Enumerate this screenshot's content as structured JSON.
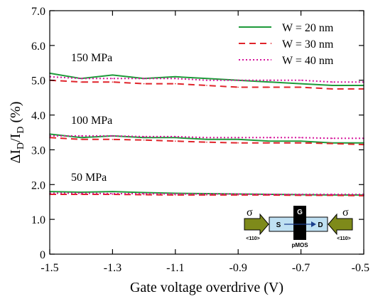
{
  "chart_data": {
    "type": "line",
    "xlabel": "Gate voltage overdrive (V)",
    "ylabel_parts": {
      "main": "ΔI",
      "sub1": "D",
      "slash": "/I",
      "sub2": "D",
      "unit": " (%)"
    },
    "xlim": [
      -1.5,
      -0.5
    ],
    "ylim": [
      0,
      7
    ],
    "x_ticks": [
      "-1.5",
      "-1.3",
      "-1.1",
      "-0.9",
      "-0.7",
      "-0.5"
    ],
    "y_ticks": [
      "0",
      "1.0",
      "2.0",
      "3.0",
      "4.0",
      "5.0",
      "6.0",
      "7.0"
    ],
    "legend_position": "top-right",
    "series": [
      {
        "name": "W = 20 nm",
        "color": "#1e9a3a",
        "style": "solid",
        "groups": [
          {
            "label": "150 MPa",
            "x": [
              -1.5,
              -1.4,
              -1.3,
              -1.2,
              -1.1,
              -1.0,
              -0.9,
              -0.8,
              -0.7,
              -0.6,
              -0.5
            ],
            "y": [
              5.2,
              5.05,
              5.15,
              5.05,
              5.1,
              5.05,
              5.0,
              4.95,
              4.9,
              4.85,
              4.85
            ]
          },
          {
            "label": "100 MPa",
            "x": [
              -1.5,
              -1.4,
              -1.3,
              -1.2,
              -1.1,
              -1.0,
              -0.9,
              -0.8,
              -0.7,
              -0.6,
              -0.5
            ],
            "y": [
              3.45,
              3.35,
              3.4,
              3.35,
              3.35,
              3.3,
              3.3,
              3.25,
              3.25,
              3.2,
              3.2
            ]
          },
          {
            "label": "50 MPa",
            "x": [
              -1.5,
              -1.4,
              -1.3,
              -1.2,
              -1.1,
              -1.0,
              -0.9,
              -0.8,
              -0.7,
              -0.6,
              -0.5
            ],
            "y": [
              1.8,
              1.78,
              1.8,
              1.77,
              1.75,
              1.74,
              1.73,
              1.72,
              1.71,
              1.7,
              1.7
            ]
          }
        ]
      },
      {
        "name": "W = 30 nm",
        "color": "#e0242b",
        "style": "dashed",
        "groups": [
          {
            "label": "150 MPa",
            "x": [
              -1.5,
              -1.4,
              -1.3,
              -1.2,
              -1.1,
              -1.0,
              -0.9,
              -0.8,
              -0.7,
              -0.6,
              -0.5
            ],
            "y": [
              5.0,
              4.95,
              4.95,
              4.9,
              4.9,
              4.85,
              4.8,
              4.8,
              4.8,
              4.75,
              4.75
            ]
          },
          {
            "label": "100 MPa",
            "x": [
              -1.5,
              -1.4,
              -1.3,
              -1.2,
              -1.1,
              -1.0,
              -0.9,
              -0.8,
              -0.7,
              -0.6,
              -0.5
            ],
            "y": [
              3.35,
              3.3,
              3.3,
              3.28,
              3.25,
              3.22,
              3.2,
              3.2,
              3.2,
              3.18,
              3.15
            ]
          },
          {
            "label": "50 MPa",
            "x": [
              -1.5,
              -1.4,
              -1.3,
              -1.2,
              -1.1,
              -1.0,
              -0.9,
              -0.8,
              -0.7,
              -0.6,
              -0.5
            ],
            "y": [
              1.72,
              1.72,
              1.72,
              1.71,
              1.7,
              1.7,
              1.7,
              1.7,
              1.69,
              1.69,
              1.68
            ]
          }
        ]
      },
      {
        "name": "W = 40 nm",
        "color": "#d6169c",
        "style": "dotted",
        "groups": [
          {
            "label": "150 MPa",
            "x": [
              -1.5,
              -1.4,
              -1.3,
              -1.2,
              -1.1,
              -1.0,
              -0.9,
              -0.8,
              -0.7,
              -0.6,
              -0.5
            ],
            "y": [
              5.1,
              5.05,
              5.05,
              5.05,
              5.05,
              5.0,
              5.0,
              5.0,
              5.0,
              4.95,
              4.95
            ]
          },
          {
            "label": "100 MPa",
            "x": [
              -1.5,
              -1.4,
              -1.3,
              -1.2,
              -1.1,
              -1.0,
              -0.9,
              -0.8,
              -0.7,
              -0.6,
              -0.5
            ],
            "y": [
              3.4,
              3.4,
              3.4,
              3.38,
              3.38,
              3.35,
              3.35,
              3.35,
              3.35,
              3.33,
              3.33
            ]
          },
          {
            "label": "50 MPa",
            "x": [
              -1.5,
              -1.4,
              -1.3,
              -1.2,
              -1.1,
              -1.0,
              -0.9,
              -0.8,
              -0.7,
              -0.6,
              -0.5
            ],
            "y": [
              1.75,
              1.75,
              1.74,
              1.74,
              1.73,
              1.73,
              1.73,
              1.72,
              1.72,
              1.72,
              1.72
            ]
          }
        ]
      }
    ],
    "annotations": [
      "150 MPa",
      "100 MPa",
      "50 MPa"
    ],
    "inset": {
      "stress_symbol": "σ",
      "gate": "G",
      "source": "S",
      "drain": "D",
      "current_main": "I",
      "current_sub": "D",
      "device": "pMOS",
      "direction": "<110>"
    }
  }
}
